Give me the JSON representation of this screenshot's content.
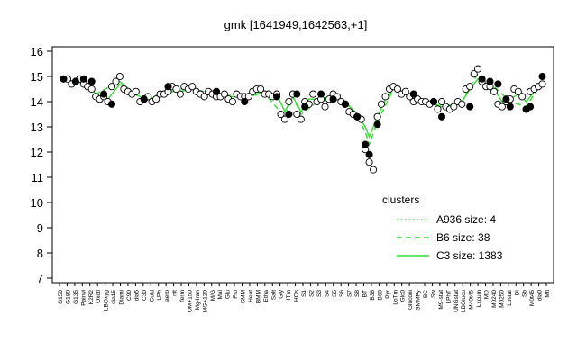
{
  "chart_data": {
    "type": "line",
    "title": "gmk [1641949,1642563,+1]",
    "xlabel": "",
    "ylabel": "",
    "ylim": [
      7,
      16
    ],
    "yticks": [
      7,
      8,
      9,
      10,
      11,
      12,
      13,
      14,
      15,
      16
    ],
    "grid": false,
    "legend": {
      "title": "clusters",
      "placement": "inside-bottom-right",
      "entries": [
        {
          "label": "A936 size: 4",
          "style": "dotted"
        },
        {
          "label": "B6 size: 38",
          "style": "dashed"
        },
        {
          "label": "C3 size: 1383",
          "style": "solid"
        }
      ]
    },
    "series_color": "#33dd33",
    "x_tick_labels": [
      "G150",
      "G180",
      "G135",
      "Pairwi",
      "K2R2",
      "Oxctl",
      "LBOxyg",
      "dia15",
      "Diami",
      "C90",
      "dia5",
      "C30",
      "Cold",
      "LPh",
      "aero",
      "nit",
      "ferm",
      "OM+150",
      "Mg-Iran",
      "MG+120",
      "M/G",
      "Mal",
      "Glu",
      "Fru",
      "SMM",
      "Heat",
      "BMM",
      "Etha",
      "Salt",
      "Gly",
      "HTm",
      "HOs",
      "S1",
      "S2",
      "S3",
      "S4",
      "S5",
      "S6",
      "S7",
      "S8",
      "BT",
      "B36",
      "B60",
      "Pyr",
      "LoTm",
      "Glc0",
      "Gluconi",
      "SMMPy",
      "BC",
      "Sw",
      "M9-stat",
      "LPhT",
      "UNGstat",
      "LBGlucu",
      "M40t45",
      "Lxcum",
      "MD",
      "M0240",
      "M0250",
      "Lbstat",
      "BI",
      "Sb",
      "M0t45",
      "dia0",
      "Mtl"
    ],
    "points_open": [
      [
        3,
        14.9
      ],
      [
        4,
        14.7
      ],
      [
        5,
        14.8
      ],
      [
        6,
        14.9
      ],
      [
        7,
        14.7
      ],
      [
        8,
        14.6
      ],
      [
        9,
        14.5
      ],
      [
        10,
        14.2
      ],
      [
        11,
        14.1
      ],
      [
        12,
        14.2
      ],
      [
        13,
        14.0
      ],
      [
        14,
        14.6
      ],
      [
        15,
        14.8
      ],
      [
        16,
        15.0
      ],
      [
        17,
        14.5
      ],
      [
        18,
        14.4
      ],
      [
        19,
        14.3
      ],
      [
        20,
        14.4
      ],
      [
        21,
        14.0
      ],
      [
        22,
        14.1
      ],
      [
        23,
        14.2
      ],
      [
        24,
        14.0
      ],
      [
        25,
        14.1
      ],
      [
        26,
        14.3
      ],
      [
        27,
        14.3
      ],
      [
        28,
        14.4
      ],
      [
        29,
        14.6
      ],
      [
        30,
        14.5
      ],
      [
        31,
        14.3
      ],
      [
        32,
        14.6
      ],
      [
        33,
        14.5
      ],
      [
        34,
        14.6
      ],
      [
        35,
        14.4
      ],
      [
        36,
        14.3
      ],
      [
        37,
        14.2
      ],
      [
        38,
        14.4
      ],
      [
        39,
        14.3
      ],
      [
        40,
        14.2
      ],
      [
        41,
        14.2
      ],
      [
        42,
        14.3
      ],
      [
        43,
        14.1
      ],
      [
        44,
        14.0
      ],
      [
        45,
        14.3
      ],
      [
        46,
        14.2
      ],
      [
        47,
        14.2
      ],
      [
        48,
        14.2
      ],
      [
        49,
        14.4
      ],
      [
        50,
        14.5
      ],
      [
        51,
        14.5
      ],
      [
        52,
        14.3
      ],
      [
        53,
        14.3
      ],
      [
        54,
        14.2
      ],
      [
        55,
        14.3
      ],
      [
        56,
        13.5
      ],
      [
        57,
        13.3
      ],
      [
        58,
        14.0
      ],
      [
        59,
        14.3
      ],
      [
        60,
        13.5
      ],
      [
        61,
        13.3
      ],
      [
        62,
        14.0
      ],
      [
        63,
        13.9
      ],
      [
        64,
        14.3
      ],
      [
        65,
        14.0
      ],
      [
        66,
        14.1
      ],
      [
        67,
        13.8
      ],
      [
        68,
        14.1
      ],
      [
        69,
        14.3
      ],
      [
        70,
        14.2
      ],
      [
        71,
        14.0
      ],
      [
        72,
        13.9
      ],
      [
        73,
        13.6
      ],
      [
        74,
        13.5
      ],
      [
        75,
        13.4
      ],
      [
        76,
        13.3
      ],
      [
        77,
        12.1
      ],
      [
        78,
        11.6
      ],
      [
        79,
        11.3
      ],
      [
        80,
        13.4
      ],
      [
        81,
        13.9
      ],
      [
        82,
        14.2
      ],
      [
        83,
        14.5
      ],
      [
        84,
        14.6
      ],
      [
        85,
        14.5
      ],
      [
        86,
        14.3
      ],
      [
        87,
        14.4
      ],
      [
        88,
        14.2
      ],
      [
        89,
        14.0
      ],
      [
        90,
        14.1
      ],
      [
        91,
        14.0
      ],
      [
        92,
        14.0
      ],
      [
        93,
        13.9
      ],
      [
        94,
        14.0
      ],
      [
        95,
        13.7
      ],
      [
        96,
        14.0
      ],
      [
        97,
        13.8
      ],
      [
        98,
        13.7
      ],
      [
        99,
        13.8
      ],
      [
        100,
        14.0
      ],
      [
        101,
        13.9
      ],
      [
        102,
        14.5
      ],
      [
        103,
        14.6
      ],
      [
        104,
        15.1
      ],
      [
        105,
        15.3
      ],
      [
        106,
        14.8
      ],
      [
        107,
        14.6
      ],
      [
        108,
        14.6
      ],
      [
        109,
        14.4
      ],
      [
        110,
        13.9
      ],
      [
        111,
        13.8
      ],
      [
        112,
        14.0
      ],
      [
        113,
        14.1
      ],
      [
        114,
        14.5
      ],
      [
        115,
        14.4
      ],
      [
        116,
        14.2
      ],
      [
        117,
        13.7
      ],
      [
        118,
        14.4
      ],
      [
        119,
        14.5
      ],
      [
        120,
        14.6
      ],
      [
        121,
        14.7
      ]
    ],
    "points_filled": [
      [
        2,
        14.9
      ],
      [
        5,
        14.8
      ],
      [
        7,
        14.9
      ],
      [
        9,
        14.8
      ],
      [
        12,
        14.3
      ],
      [
        14,
        13.9
      ],
      [
        22,
        14.1
      ],
      [
        28,
        14.6
      ],
      [
        40,
        14.4
      ],
      [
        47,
        14.0
      ],
      [
        55,
        14.2
      ],
      [
        58,
        13.5
      ],
      [
        60,
        14.3
      ],
      [
        62,
        13.8
      ],
      [
        66,
        14.3
      ],
      [
        69,
        14.1
      ],
      [
        72,
        13.9
      ],
      [
        75,
        13.4
      ],
      [
        77,
        12.3
      ],
      [
        78,
        11.9
      ],
      [
        80,
        13.1
      ],
      [
        89,
        14.3
      ],
      [
        94,
        14.0
      ],
      [
        96,
        13.4
      ],
      [
        103,
        13.8
      ],
      [
        106,
        14.9
      ],
      [
        108,
        14.8
      ],
      [
        110,
        14.7
      ],
      [
        112,
        14.1
      ],
      [
        113,
        13.8
      ],
      [
        117,
        13.7
      ],
      [
        118,
        13.8
      ],
      [
        121,
        15.0
      ]
    ],
    "c3_line": [
      [
        2,
        14.9
      ],
      [
        5,
        14.8
      ],
      [
        8,
        14.7
      ],
      [
        10,
        14.3
      ],
      [
        13,
        14.1
      ],
      [
        16,
        14.7
      ],
      [
        19,
        14.4
      ],
      [
        22,
        14.1
      ],
      [
        25,
        14.1
      ],
      [
        28,
        14.4
      ],
      [
        31,
        14.4
      ],
      [
        34,
        14.5
      ],
      [
        37,
        14.3
      ],
      [
        40,
        14.3
      ],
      [
        43,
        14.2
      ],
      [
        46,
        14.2
      ],
      [
        49,
        14.4
      ],
      [
        52,
        14.3
      ],
      [
        55,
        14.3
      ],
      [
        57,
        13.6
      ],
      [
        59,
        14.2
      ],
      [
        61,
        13.6
      ],
      [
        63,
        14.1
      ],
      [
        66,
        14.1
      ],
      [
        69,
        14.2
      ],
      [
        72,
        14.0
      ],
      [
        75,
        13.5
      ],
      [
        77,
        13.0
      ],
      [
        78,
        12.6
      ],
      [
        80,
        13.4
      ],
      [
        82,
        14.1
      ],
      [
        84,
        14.5
      ],
      [
        87,
        14.3
      ],
      [
        90,
        14.1
      ],
      [
        93,
        14.0
      ],
      [
        96,
        13.8
      ],
      [
        99,
        13.9
      ],
      [
        101,
        14.0
      ],
      [
        103,
        14.5
      ],
      [
        105,
        14.9
      ],
      [
        107,
        14.7
      ],
      [
        109,
        14.5
      ],
      [
        111,
        14.0
      ],
      [
        113,
        14.1
      ],
      [
        115,
        14.3
      ],
      [
        117,
        14.0
      ],
      [
        119,
        14.4
      ],
      [
        121,
        14.7
      ]
    ],
    "b6_line": [
      [
        2,
        14.9
      ],
      [
        6,
        14.8
      ],
      [
        10,
        14.3
      ],
      [
        16,
        14.8
      ],
      [
        22,
        14.0
      ],
      [
        28,
        14.5
      ],
      [
        34,
        14.5
      ],
      [
        40,
        14.3
      ],
      [
        46,
        14.2
      ],
      [
        52,
        14.3
      ],
      [
        57,
        13.4
      ],
      [
        59,
        14.2
      ],
      [
        61,
        13.5
      ],
      [
        66,
        14.1
      ],
      [
        72,
        14.0
      ],
      [
        75,
        13.4
      ],
      [
        77,
        12.8
      ],
      [
        78,
        12.3
      ],
      [
        80,
        13.2
      ],
      [
        84,
        14.5
      ],
      [
        90,
        14.1
      ],
      [
        96,
        13.8
      ],
      [
        101,
        14.0
      ],
      [
        103,
        14.6
      ],
      [
        105,
        15.1
      ],
      [
        109,
        14.6
      ],
      [
        113,
        14.0
      ],
      [
        117,
        13.8
      ],
      [
        121,
        14.8
      ]
    ]
  }
}
